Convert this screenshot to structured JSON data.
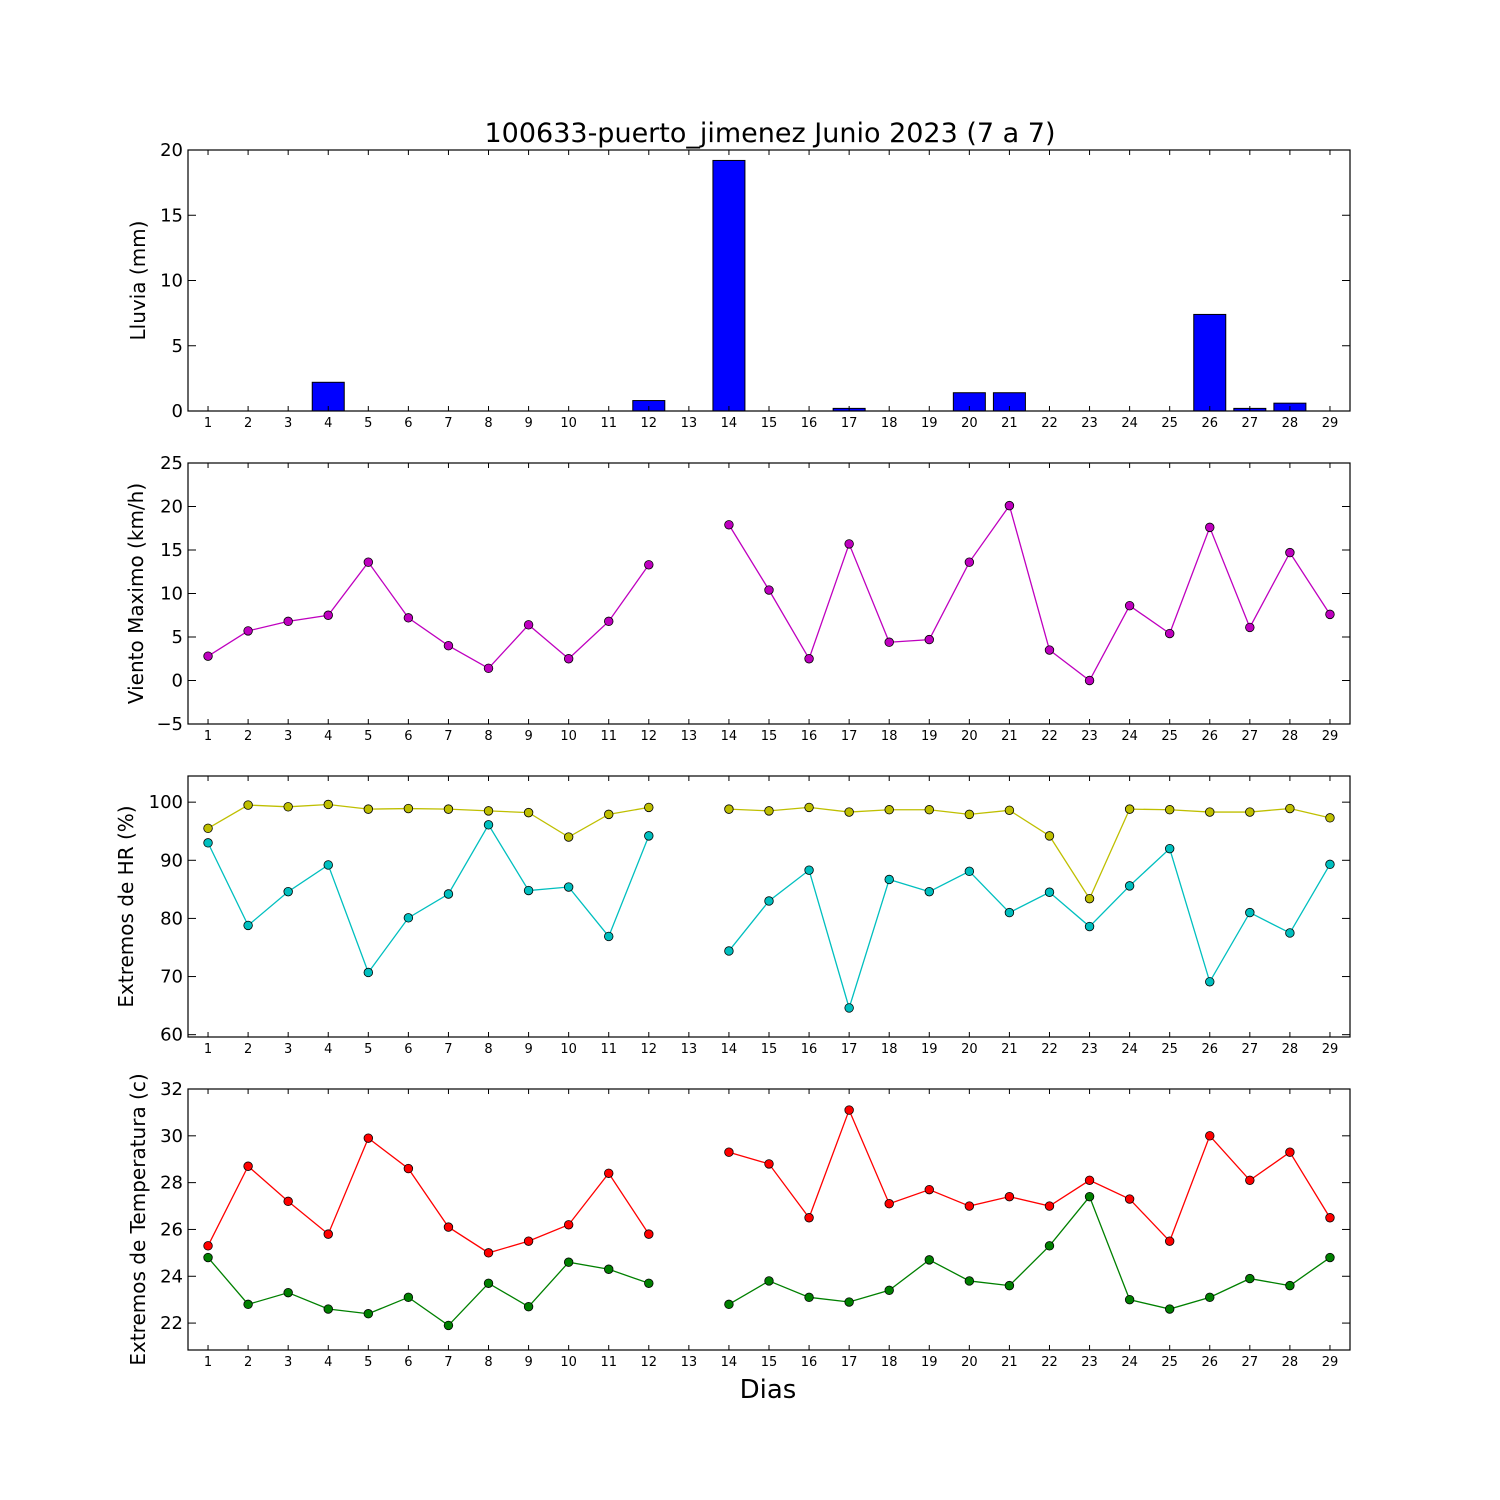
{
  "title": "100633-puerto_jimenez Junio 2023  (7 a 7)",
  "xlabel": "Dias",
  "chart_data": [
    {
      "type": "bar",
      "ylabel": "Lluvia (mm)",
      "ylim": [
        0,
        20
      ],
      "yticks": [
        0,
        5,
        10,
        15,
        20
      ],
      "x": [
        1,
        2,
        3,
        4,
        5,
        6,
        7,
        8,
        9,
        10,
        11,
        12,
        13,
        14,
        15,
        16,
        17,
        18,
        19,
        20,
        21,
        22,
        23,
        24,
        25,
        26,
        27,
        28,
        29
      ],
      "xticks": [
        "1",
        "2",
        "3",
        "4",
        "5",
        "6",
        "7",
        "8",
        "9",
        "10",
        "11",
        "12",
        "13",
        "14",
        "15",
        "16",
        "17",
        "18",
        "19",
        "20",
        "21",
        "22",
        "23",
        "24",
        "25",
        "26",
        "27",
        "28",
        "29"
      ],
      "series": [
        {
          "color": "#0000ff",
          "values": [
            0,
            0,
            0,
            2.2,
            0,
            0,
            0,
            0,
            0,
            0,
            0,
            0.8,
            null,
            19.2,
            0,
            0,
            0.2,
            0,
            0,
            1.4,
            1.4,
            0,
            0,
            0,
            0,
            7.4,
            0.2,
            0.6,
            0
          ]
        }
      ]
    },
    {
      "type": "line",
      "ylabel": "Viento Maximo (km/h)",
      "ylim": [
        -5,
        25
      ],
      "yticks": [
        -5,
        0,
        5,
        10,
        15,
        20,
        25
      ],
      "x": [
        1,
        2,
        3,
        4,
        5,
        6,
        7,
        8,
        9,
        10,
        11,
        12,
        13,
        14,
        15,
        16,
        17,
        18,
        19,
        20,
        21,
        22,
        23,
        24,
        25,
        26,
        27,
        28,
        29
      ],
      "xticks": [
        "1",
        "2",
        "3",
        "4",
        "5",
        "6",
        "7",
        "8",
        "9",
        "10",
        "11",
        "12",
        "13",
        "14",
        "15",
        "16",
        "17",
        "18",
        "19",
        "20",
        "21",
        "22",
        "23",
        "24",
        "25",
        "26",
        "27",
        "28",
        "29"
      ],
      "series": [
        {
          "color": "#bf00bf",
          "values": [
            2.8,
            5.7,
            6.8,
            7.5,
            13.6,
            7.2,
            4.0,
            1.4,
            6.4,
            2.5,
            6.8,
            13.3,
            null,
            17.9,
            10.4,
            2.5,
            15.7,
            4.4,
            4.7,
            13.6,
            20.1,
            3.5,
            0.0,
            8.6,
            5.4,
            17.6,
            6.1,
            14.7,
            7.6
          ]
        }
      ]
    },
    {
      "type": "line",
      "ylabel": "Extremos de HR (%)",
      "ylim": [
        59.6,
        104.5
      ],
      "yticks": [
        60,
        70,
        80,
        90,
        100
      ],
      "x": [
        1,
        2,
        3,
        4,
        5,
        6,
        7,
        8,
        9,
        10,
        11,
        12,
        13,
        14,
        15,
        16,
        17,
        18,
        19,
        20,
        21,
        22,
        23,
        24,
        25,
        26,
        27,
        28,
        29
      ],
      "xticks": [
        "1",
        "2",
        "3",
        "4",
        "5",
        "6",
        "7",
        "8",
        "9",
        "10",
        "11",
        "12",
        "13",
        "14",
        "15",
        "16",
        "17",
        "18",
        "19",
        "20",
        "21",
        "22",
        "23",
        "24",
        "25",
        "26",
        "27",
        "28",
        "29"
      ],
      "series": [
        {
          "color": "#bfbf00",
          "values": [
            95.5,
            99.5,
            99.2,
            99.6,
            98.8,
            98.9,
            98.8,
            98.5,
            98.2,
            94.0,
            97.9,
            99.1,
            null,
            98.8,
            98.5,
            99.1,
            98.3,
            98.7,
            98.7,
            97.9,
            98.6,
            94.2,
            83.4,
            98.8,
            98.7,
            98.3,
            98.3,
            98.9,
            97.3
          ]
        },
        {
          "color": "#00bfbf",
          "values": [
            93.0,
            78.8,
            84.6,
            89.2,
            70.7,
            80.1,
            84.2,
            96.1,
            84.8,
            85.4,
            76.9,
            94.2,
            null,
            74.4,
            83.0,
            88.3,
            64.6,
            86.7,
            84.6,
            88.1,
            81.0,
            84.5,
            78.6,
            85.6,
            92.0,
            69.1,
            81.0,
            77.5,
            89.3
          ]
        }
      ]
    },
    {
      "type": "line",
      "ylabel": "Extremos de Temperatura (c)",
      "ylim": [
        20.85,
        32
      ],
      "yticks": [
        22,
        24,
        26,
        28,
        30,
        32
      ],
      "x": [
        1,
        2,
        3,
        4,
        5,
        6,
        7,
        8,
        9,
        10,
        11,
        12,
        13,
        14,
        15,
        16,
        17,
        18,
        19,
        20,
        21,
        22,
        23,
        24,
        25,
        26,
        27,
        28,
        29
      ],
      "xticks": [
        "1",
        "2",
        "3",
        "4",
        "5",
        "6",
        "7",
        "8",
        "9",
        "10",
        "11",
        "12",
        "13",
        "14",
        "15",
        "16",
        "17",
        "18",
        "19",
        "20",
        "21",
        "22",
        "23",
        "24",
        "25",
        "26",
        "27",
        "28",
        "29"
      ],
      "series": [
        {
          "color": "#ff0000",
          "values": [
            25.3,
            28.7,
            27.2,
            25.8,
            29.9,
            28.6,
            26.1,
            25.0,
            25.5,
            26.2,
            28.4,
            25.8,
            null,
            29.3,
            28.8,
            26.5,
            31.1,
            27.1,
            27.7,
            27.0,
            27.4,
            27.0,
            28.1,
            27.3,
            25.5,
            30.0,
            28.1,
            29.3,
            26.5
          ]
        },
        {
          "color": "#008000",
          "values": [
            24.8,
            22.8,
            23.3,
            22.6,
            22.4,
            23.1,
            21.9,
            23.7,
            22.7,
            24.6,
            24.3,
            23.7,
            null,
            22.8,
            23.8,
            23.1,
            22.9,
            23.4,
            24.7,
            23.8,
            23.6,
            25.3,
            27.4,
            23.0,
            22.6,
            23.1,
            23.9,
            23.6,
            24.8
          ]
        }
      ]
    }
  ]
}
